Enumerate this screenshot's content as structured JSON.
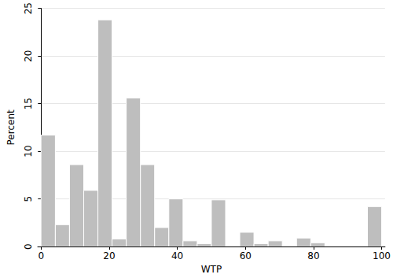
{
  "chart_data": {
    "type": "histogram",
    "xlabel": "WTP",
    "ylabel": "Percent",
    "bins": [
      0,
      4.17,
      8.33,
      12.5,
      16.67,
      20.83,
      25,
      29.17,
      33.33,
      37.5,
      41.67,
      45.83,
      50,
      54.17,
      58.33,
      62.5,
      66.67,
      70.83,
      75,
      79.17,
      83.33,
      87.5,
      91.67,
      95.83,
      100
    ],
    "values": [
      11.7,
      2.3,
      8.6,
      5.9,
      23.8,
      0.8,
      15.6,
      8.6,
      2.0,
      5.0,
      0.6,
      0.3,
      4.9,
      0,
      1.5,
      0.3,
      0.6,
      0,
      0.9,
      0.4,
      0,
      0,
      0,
      4.2
    ],
    "color": "#bebebe",
    "xlim": [
      -1,
      101
    ],
    "xticks": [
      0,
      20,
      40,
      60,
      80,
      100
    ],
    "ylim": [
      0,
      25
    ],
    "yticks": [
      0,
      5,
      10,
      15,
      20,
      25
    ],
    "grid": true
  }
}
